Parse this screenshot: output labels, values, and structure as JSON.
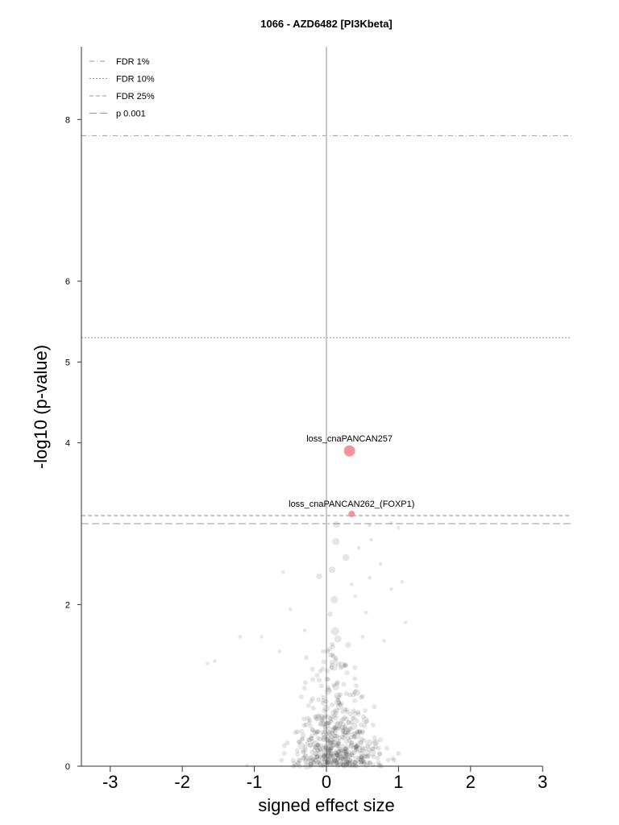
{
  "chart_data": {
    "type": "scatter",
    "title": "1066 - AZD6482 [PI3Kbeta]",
    "xlabel": "signed effect size",
    "ylabel": "-log10 (p-value)",
    "xlim": [
      -3.4,
      3.4
    ],
    "ylim": [
      0,
      8.9
    ],
    "xticks": [
      "-3",
      "-2",
      "-1",
      "0",
      "1",
      "2",
      "3"
    ],
    "yticks": [
      "0",
      "2",
      "4",
      "5",
      "6",
      "8"
    ],
    "grid": false,
    "legend_position": "top-left",
    "reference_lines": [
      {
        "name": "FDR 1%",
        "y": 7.8,
        "style": "dash-dot"
      },
      {
        "name": "FDR 10%",
        "y": 5.3,
        "style": "dotted"
      },
      {
        "name": "FDR 25%",
        "y": 3.1,
        "style": "dashed"
      },
      {
        "name": "p 0.001",
        "y": 3.0,
        "style": "long-dash"
      }
    ],
    "highlighted": [
      {
        "label": "loss_cnaPANCAN257",
        "x": 0.32,
        "y": 3.9,
        "size": 3,
        "color": "#f47f86"
      },
      {
        "label": "loss_cnaPANCAN262_(FOXP1)",
        "x": 0.35,
        "y": 3.12,
        "size": 1,
        "color": "#f47f86"
      }
    ],
    "background_points": {
      "color": "#333333",
      "points": [
        {
          "x": 0.14,
          "y": 2.99,
          "size": 2
        },
        {
          "x": 0.13,
          "y": 2.78,
          "size": 2.3
        },
        {
          "x": 0.27,
          "y": 2.58,
          "size": 2
        },
        {
          "x": 0.08,
          "y": 2.43,
          "size": 2
        },
        {
          "x": -0.1,
          "y": 2.35,
          "size": 1.5
        },
        {
          "x": 0.11,
          "y": 2.06,
          "size": 2.5
        },
        {
          "x": 0.12,
          "y": 1.67,
          "size": 3
        },
        {
          "x": 0.1,
          "y": 1.23,
          "size": 3
        },
        {
          "x": 0.22,
          "y": 1.25,
          "size": 2
        },
        {
          "x": 0.13,
          "y": 0.98,
          "size": 2
        },
        {
          "x": 0.3,
          "y": 1.5,
          "size": 1.6
        },
        {
          "x": 0.05,
          "y": 1.88,
          "size": 1.2
        },
        {
          "x": -0.6,
          "y": 2.4,
          "size": 0.6
        },
        {
          "x": -0.5,
          "y": 1.94,
          "size": 0.6
        },
        {
          "x": -1.2,
          "y": 1.6,
          "size": 0.6
        },
        {
          "x": -1.55,
          "y": 1.3,
          "size": 0.6
        },
        {
          "x": -1.65,
          "y": 1.27,
          "size": 0.6
        },
        {
          "x": -0.9,
          "y": 1.6,
          "size": 0.6
        },
        {
          "x": -0.65,
          "y": 1.42,
          "size": 0.6
        },
        {
          "x": -0.3,
          "y": 1.68,
          "size": 0.6
        },
        {
          "x": 0.6,
          "y": 2.98,
          "size": 0.6
        },
        {
          "x": 0.9,
          "y": 3.01,
          "size": 0.6
        },
        {
          "x": 1.0,
          "y": 2.95,
          "size": 0.6
        },
        {
          "x": 1.05,
          "y": 2.28,
          "size": 0.6
        },
        {
          "x": 1.1,
          "y": 1.78,
          "size": 0.6
        },
        {
          "x": 0.62,
          "y": 2.8,
          "size": 0.6
        },
        {
          "x": 0.45,
          "y": 2.7,
          "size": 0.6
        },
        {
          "x": 0.75,
          "y": 2.5,
          "size": 0.6
        },
        {
          "x": 0.6,
          "y": 2.33,
          "size": 0.6
        },
        {
          "x": 0.9,
          "y": 2.19,
          "size": 0.6
        },
        {
          "x": -1.1,
          "y": 0.01,
          "size": 0.6
        },
        {
          "x": 0.4,
          "y": 2.1,
          "size": 0.6
        },
        {
          "x": 0.55,
          "y": 1.9,
          "size": 0.6
        },
        {
          "x": 0.35,
          "y": 2.25,
          "size": 0.6
        },
        {
          "x": 0.5,
          "y": 1.6,
          "size": 0.6
        },
        {
          "x": 0.8,
          "y": 1.55,
          "size": 0.6
        }
      ],
      "cloud_count": 520,
      "cloud_x_range": [
        -0.7,
        1.0
      ],
      "cloud_y_range": [
        0.0,
        1.7
      ]
    }
  }
}
